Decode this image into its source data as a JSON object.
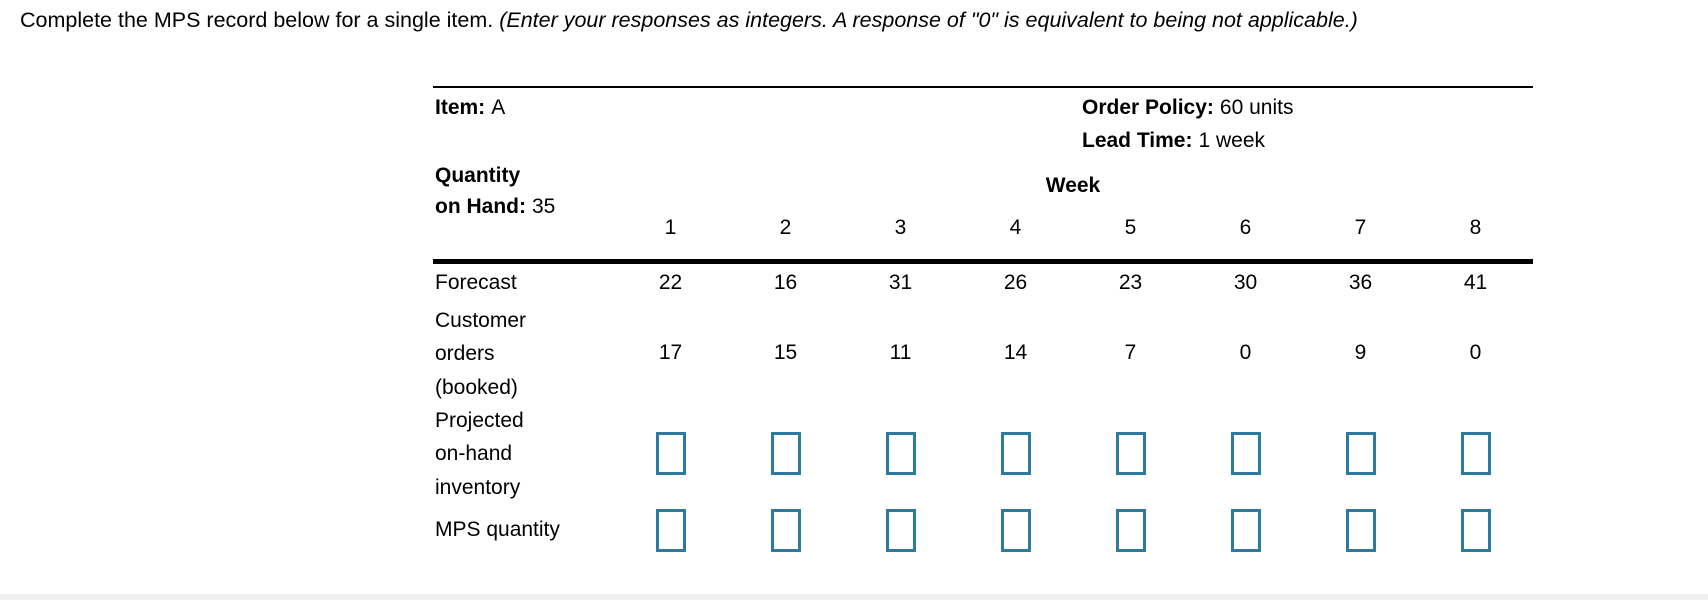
{
  "instruction": {
    "normal": "Complete the MPS record below for a single item. ",
    "italic": "(Enter your responses as integers. A response of \"0\" is equivalent to being not applicable.)"
  },
  "record": {
    "item_label": "Item:",
    "item_value": "A",
    "order_policy_label": "Order Policy:",
    "order_policy_value": "60 units",
    "lead_time_label": "Lead Time:",
    "lead_time_value": "1 week",
    "quantity_on_hand_line1": "Quantity",
    "quantity_on_hand_line2": "on Hand:",
    "quantity_on_hand_value": "35",
    "week_header": "Week",
    "weeks": [
      "1",
      "2",
      "3",
      "4",
      "5",
      "6",
      "7",
      "8"
    ],
    "rows": {
      "forecast": {
        "label": "Forecast",
        "values": [
          22,
          16,
          31,
          26,
          23,
          30,
          36,
          41
        ]
      },
      "customer_orders": {
        "label_lines": [
          "Customer",
          "orders",
          "(booked)"
        ],
        "values": [
          17,
          15,
          11,
          14,
          7,
          0,
          9,
          0
        ]
      },
      "projected_on_hand": {
        "label_lines": [
          "Projected",
          "on-hand",
          "inventory"
        ],
        "inputs": [
          "",
          "",
          "",
          "",
          "",
          "",
          "",
          ""
        ]
      },
      "mps_quantity": {
        "label": "MPS quantity",
        "inputs": [
          "",
          "",
          "",
          "",
          "",
          "",
          "",
          ""
        ]
      }
    }
  },
  "colors": {
    "input_border": "#2e7a9e",
    "rule": "#000000",
    "background": "#ffffff"
  }
}
